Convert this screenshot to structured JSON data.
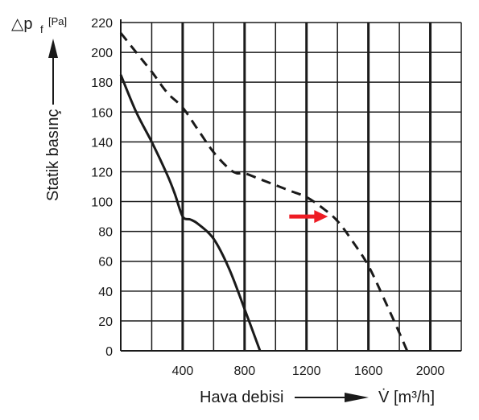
{
  "chart_data": {
    "type": "line",
    "title": "",
    "xlabel": "Hava debisi",
    "x_unit": "[m³/h]",
    "x_symbol": "V̇",
    "ylabel": "Statik basınç",
    "y_symbol": "△p",
    "y_subscript": "f",
    "y_unit": "[Pa]",
    "xlim": [
      0,
      2200
    ],
    "ylim": [
      0,
      220
    ],
    "x_ticks": [
      400,
      800,
      1200,
      1600,
      2000
    ],
    "y_ticks": [
      0,
      20,
      40,
      60,
      80,
      100,
      120,
      140,
      160,
      180,
      200,
      220
    ],
    "grid": true,
    "series": [
      {
        "style": "solid",
        "color": "#1a1a1a",
        "points": [
          [
            0,
            185
          ],
          [
            100,
            160
          ],
          [
            200,
            140
          ],
          [
            300,
            118
          ],
          [
            350,
            105
          ],
          [
            400,
            90
          ],
          [
            450,
            88
          ],
          [
            500,
            85
          ],
          [
            600,
            75
          ],
          [
            700,
            55
          ],
          [
            800,
            28
          ],
          [
            900,
            0
          ]
        ]
      },
      {
        "style": "dashed",
        "color": "#1a1a1a",
        "points": [
          [
            0,
            213
          ],
          [
            100,
            200
          ],
          [
            200,
            187
          ],
          [
            300,
            173
          ],
          [
            400,
            163
          ],
          [
            500,
            148
          ],
          [
            600,
            133
          ],
          [
            700,
            122
          ],
          [
            750,
            119
          ],
          [
            800,
            119
          ],
          [
            900,
            115
          ],
          [
            1000,
            111
          ],
          [
            1100,
            107
          ],
          [
            1200,
            103
          ],
          [
            1300,
            96
          ],
          [
            1400,
            87
          ],
          [
            1500,
            73
          ],
          [
            1600,
            57
          ],
          [
            1700,
            35
          ],
          [
            1800,
            12
          ],
          [
            1850,
            0
          ]
        ]
      }
    ],
    "annotation": {
      "type": "arrow",
      "color": "#ee1c24",
      "points_to": [
        1380,
        90
      ]
    }
  }
}
